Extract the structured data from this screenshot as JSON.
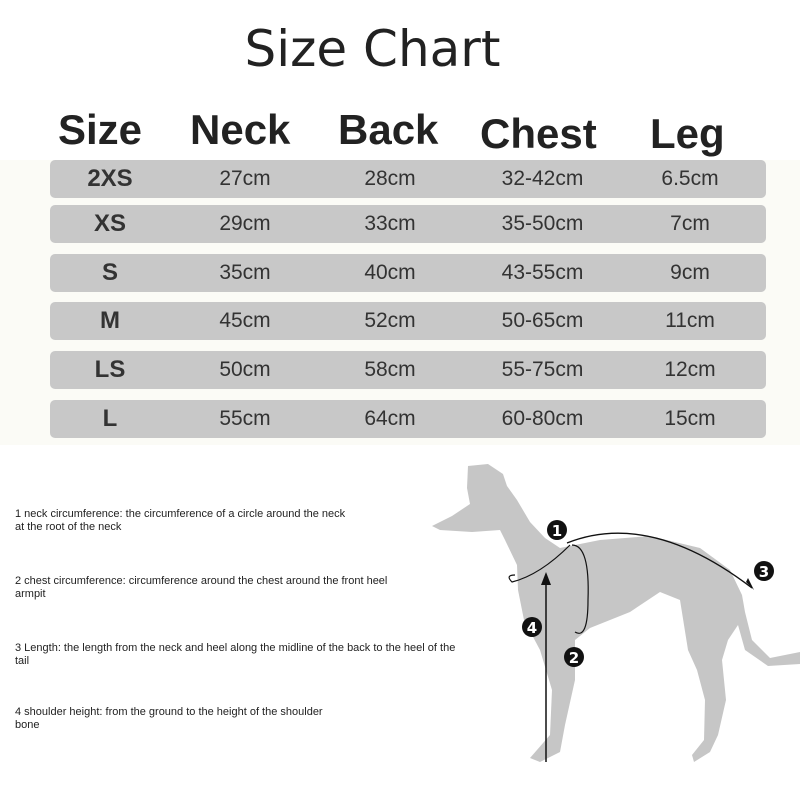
{
  "title": "Size Chart",
  "headers": [
    "Size",
    "Neck",
    "Back",
    "Chest",
    "Leg"
  ],
  "rows": [
    [
      "2XS",
      "27cm",
      "28cm",
      "32-42cm",
      "6.5cm"
    ],
    [
      "XS",
      "29cm",
      "33cm",
      "35-50cm",
      "7cm"
    ],
    [
      "S",
      "35cm",
      "40cm",
      "43-55cm",
      "9cm"
    ],
    [
      "M",
      "45cm",
      "52cm",
      "50-65cm",
      "11cm"
    ],
    [
      "LS",
      "50cm",
      "58cm",
      "55-75cm",
      "12cm"
    ],
    [
      "L",
      "55cm",
      "64cm",
      "60-80cm",
      "15cm"
    ]
  ],
  "notes": [
    "1 neck circumference: the circumference of a circle around the neck\nat the root of the neck",
    "2 chest circumference: circumference around the chest around the front heel\narmpit",
    "3 Length: the length from the neck and heel along the midline of the back to the heel of the\ntail",
    "4 shoulder height: from the ground to the height of the shoulder\nbone"
  ],
  "markers": [
    "1",
    "2",
    "3",
    "4"
  ],
  "colors": {
    "row": "#c8c8c8",
    "silhouette": "#c6c6c6"
  }
}
